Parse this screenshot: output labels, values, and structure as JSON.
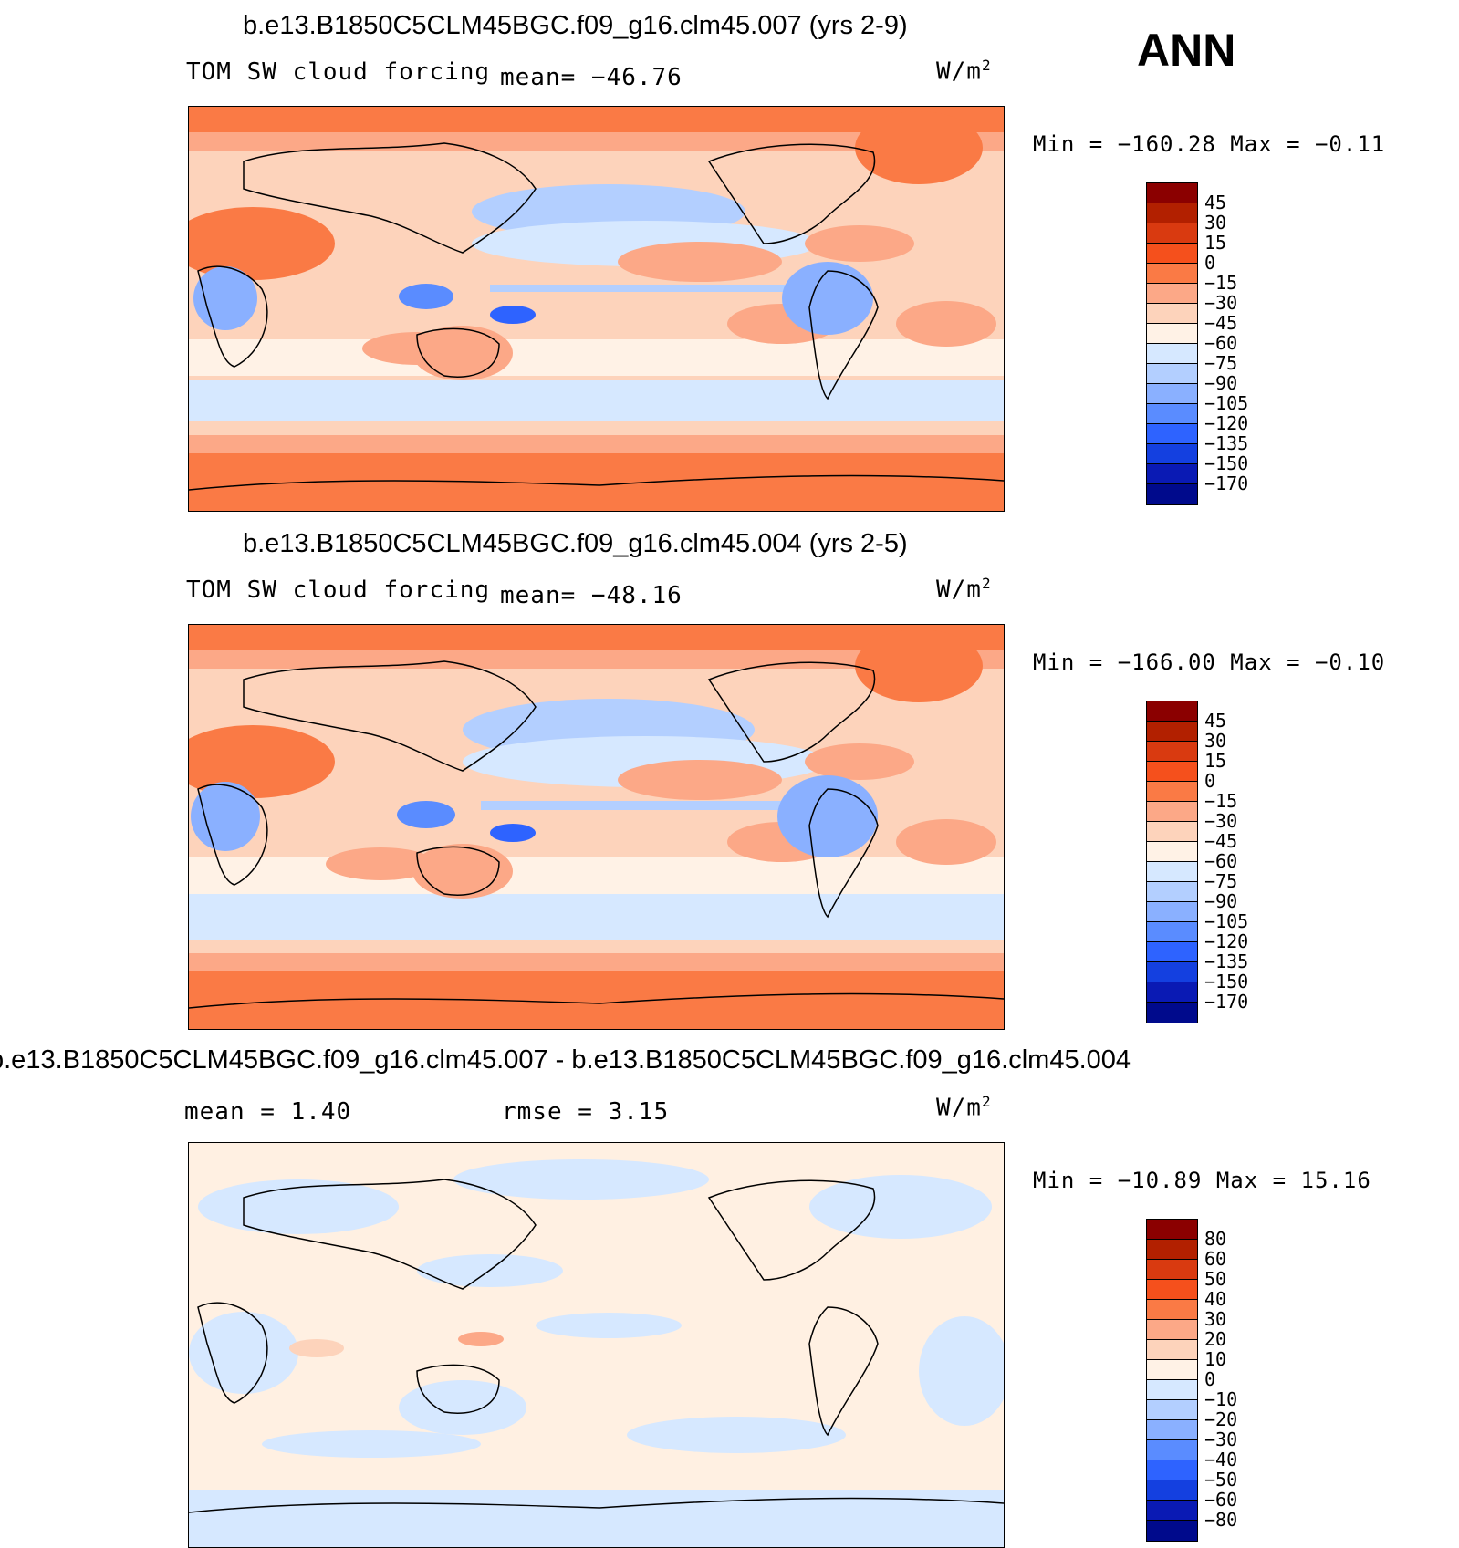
{
  "season": "ANN",
  "units_base": "W/m",
  "units_exp": "2",
  "panels": [
    {
      "title": "b.e13.B1850C5CLM45BGC.f09_g16.clm45.007 (yrs 2-9)",
      "variable": "TOM SW cloud forcing",
      "stat_text": "mean= −46.76",
      "minmax": "Min = −160.28 Max =  −0.11",
      "levels": [
        "45",
        "30",
        "15",
        "0",
        "−15",
        "−30",
        "−45",
        "−60",
        "−75",
        "−90",
        "−105",
        "−120",
        "−135",
        "−150",
        "−170"
      ]
    },
    {
      "title": "b.e13.B1850C5CLM45BGC.f09_g16.clm45.004 (yrs 2-5)",
      "variable": "TOM SW cloud forcing",
      "stat_text": "mean= −48.16",
      "minmax": "Min = −166.00 Max =  −0.10",
      "levels": [
        "45",
        "30",
        "15",
        "0",
        "−15",
        "−30",
        "−45",
        "−60",
        "−75",
        "−90",
        "−105",
        "−120",
        "−135",
        "−150",
        "−170"
      ]
    },
    {
      "title": "b.e13.B1850C5CLM45BGC.f09_g16.clm45.007 - b.e13.B1850C5CLM45BGC.f09_g16.clm45.004",
      "mean_text": "mean =    1.40",
      "rmse_text": "rmse =    3.15",
      "minmax": "Min = −10.89 Max =  15.16",
      "levels": [
        "80",
        "60",
        "50",
        "40",
        "30",
        "20",
        "10",
        "0",
        "−10",
        "−20",
        "−30",
        "−40",
        "−50",
        "−60",
        "−80"
      ]
    }
  ],
  "colorbar_colors": [
    "#8b0000",
    "#b22000",
    "#d93a10",
    "#f5501c",
    "#fa7a45",
    "#fca887",
    "#fdd3bb",
    "#fff2e6",
    "#d6e8ff",
    "#b3cfff",
    "#8ab0ff",
    "#5a8cff",
    "#2e63ff",
    "#1440e0",
    "#0a1ab4",
    "#000a8c"
  ]
}
